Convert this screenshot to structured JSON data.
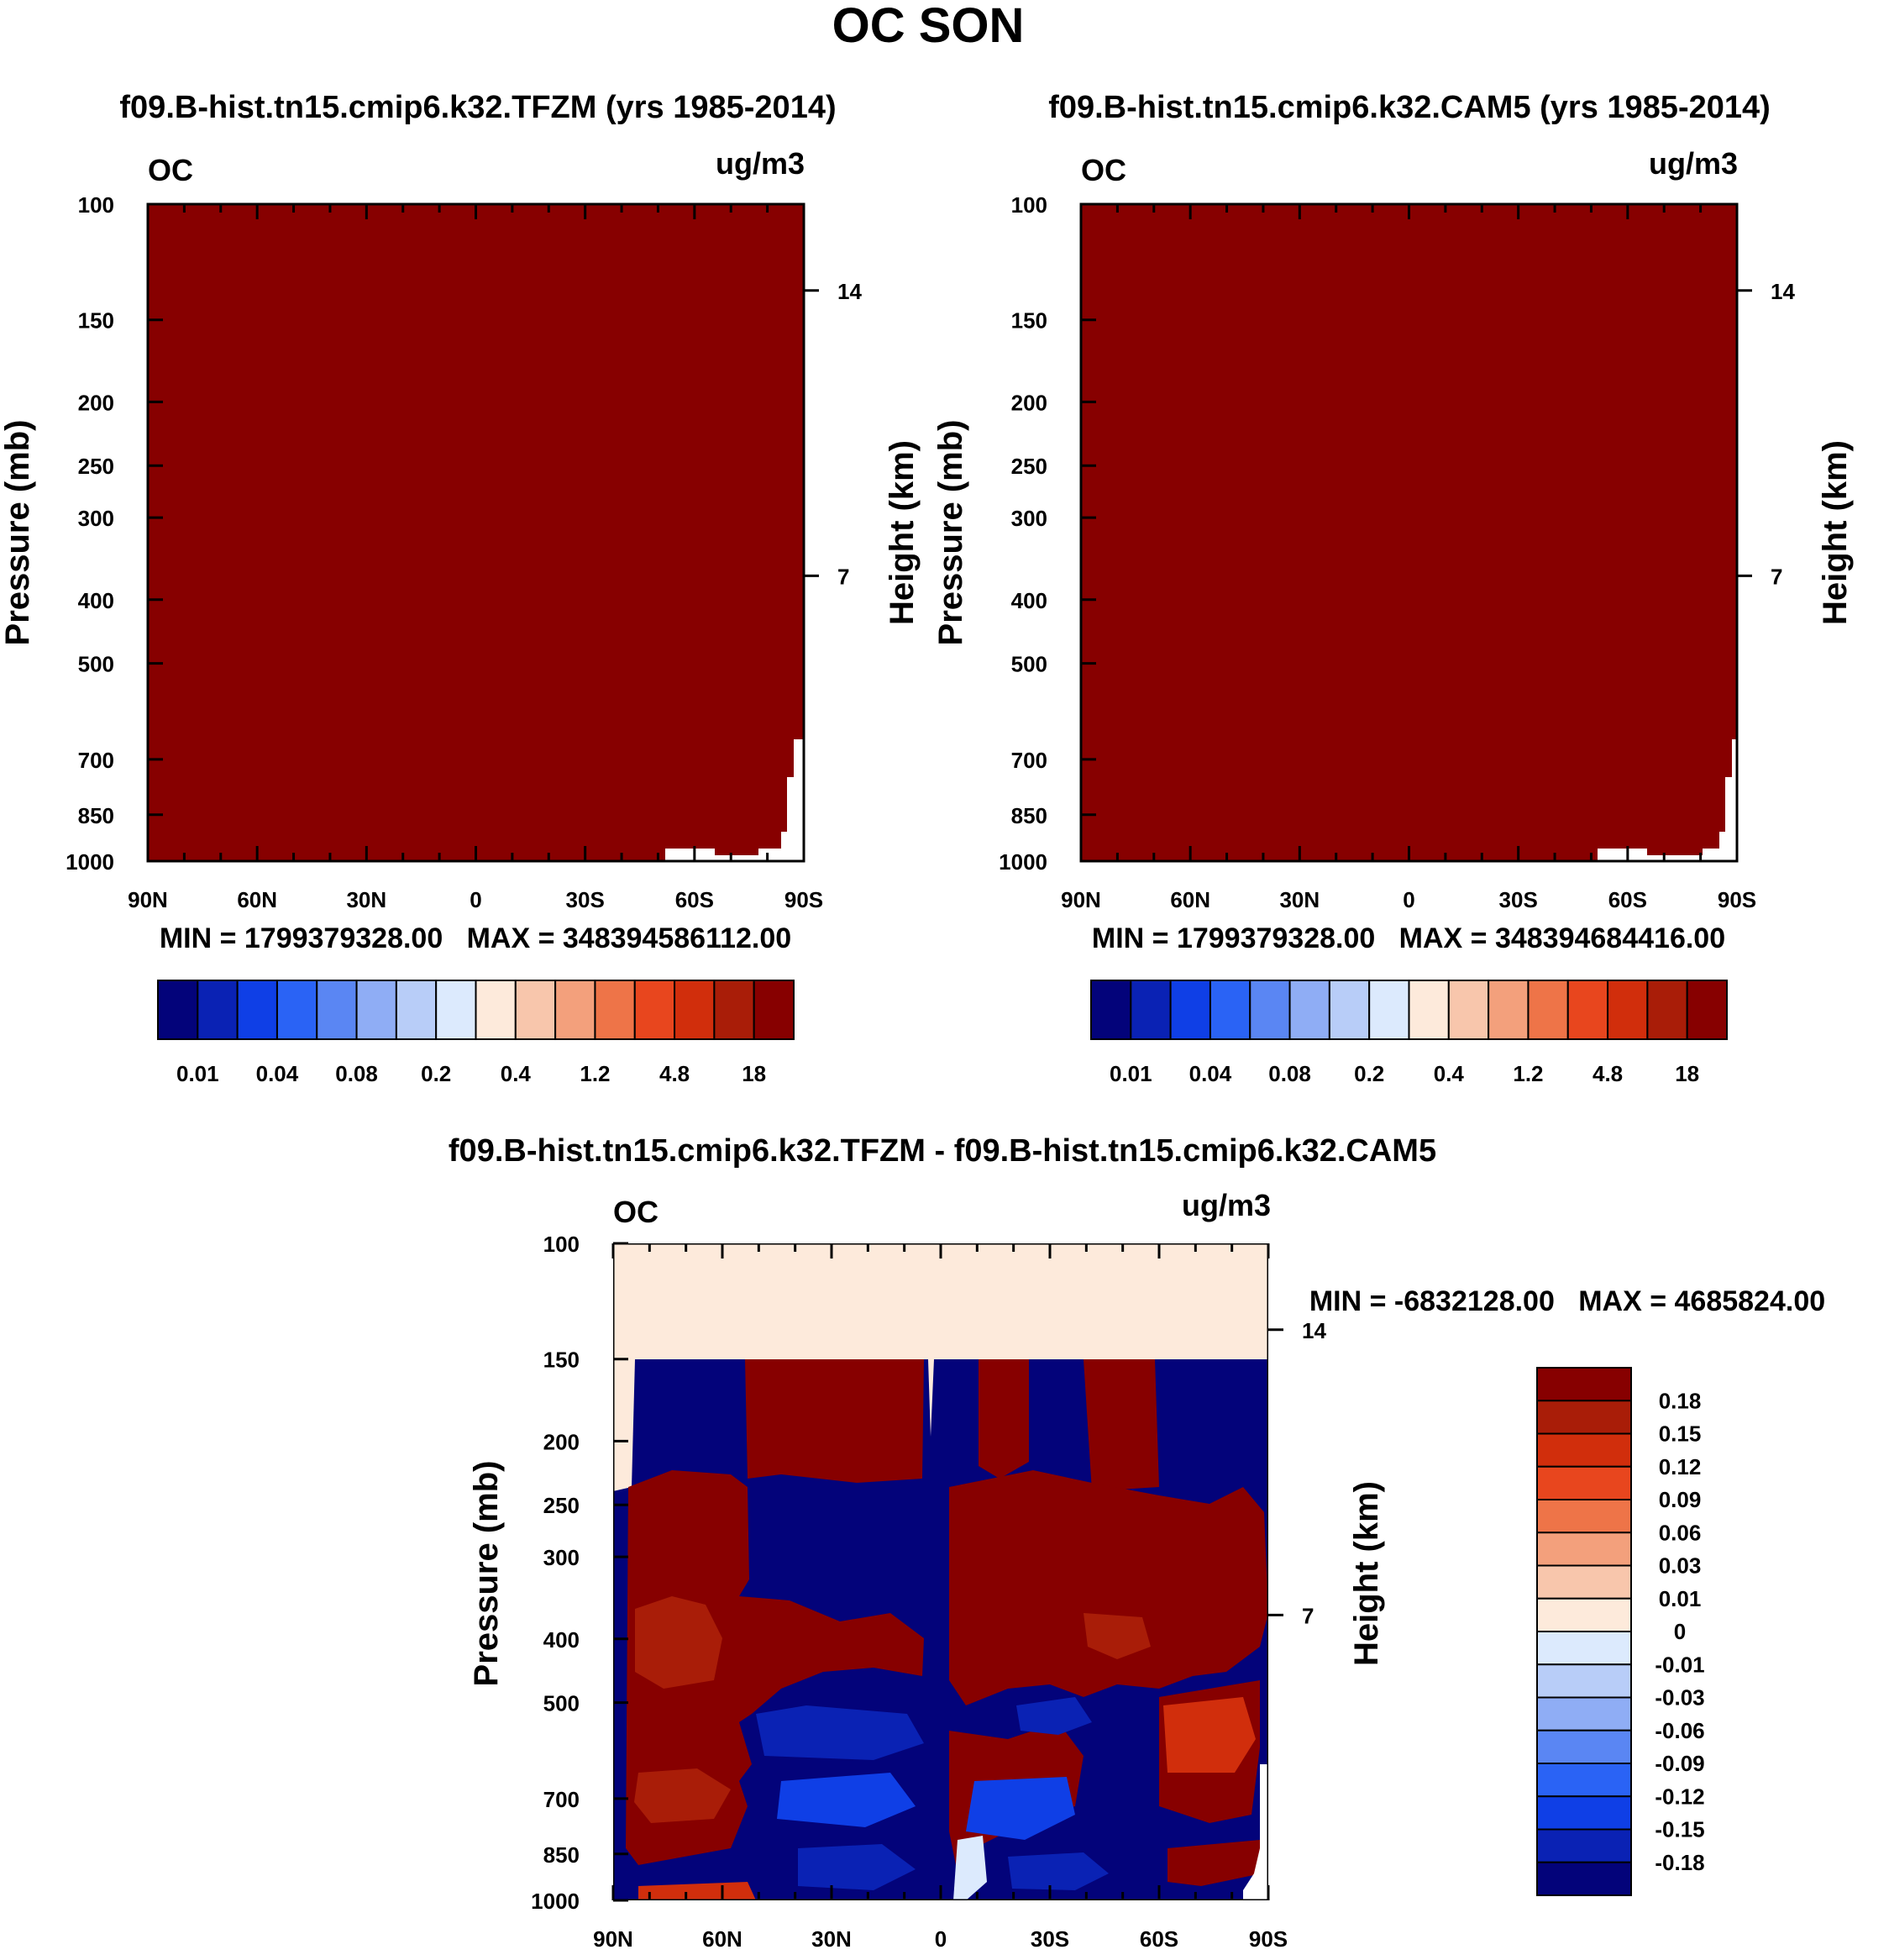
{
  "figure_title": "OC SON",
  "panels": [
    {
      "title": "f09.B-hist.tn15.cmip6.k32.TFZM (yrs 1985-2014)",
      "var_label": "OC",
      "units": "ug/m3",
      "ylabel": "Pressure (mb)",
      "ylabel_right": "Height (km)",
      "stats": "MIN = 1799379328.00   MAX = 348394586112.00"
    },
    {
      "title": "f09.B-hist.tn15.cmip6.k32.CAM5 (yrs 1985-2014)",
      "var_label": "OC",
      "units": "ug/m3",
      "ylabel": "Pressure (mb)",
      "ylabel_right": "Height (km)",
      "stats": "MIN = 1799379328.00   MAX = 348394684416.00"
    },
    {
      "title": "f09.B-hist.tn15.cmip6.k32.TFZM - f09.B-hist.tn15.cmip6.k32.CAM5",
      "var_label": "OC",
      "units": "ug/m3",
      "ylabel": "Pressure (mb)",
      "ylabel_right": "Height (km)",
      "stats": "MIN = -6832128.00   MAX = 4685824.00"
    }
  ],
  "colors": {
    "abs_palette": [
      "#03037a",
      "#0a22b4",
      "#0f3fe6",
      "#2a63f5",
      "#5a86f3",
      "#8fadf5",
      "#b8cdf8",
      "#dceafd",
      "#fdeadb",
      "#f8c6ac",
      "#f3a07c",
      "#ee7448",
      "#e8461e",
      "#d12e0c",
      "#a91d08",
      "#870000"
    ],
    "diff_palette": [
      "#870000",
      "#a91d08",
      "#d12e0c",
      "#e8461e",
      "#ee7448",
      "#f3a07c",
      "#f8c6ac",
      "#fdeadb",
      "#dceafd",
      "#b8cdf8",
      "#8fadf5",
      "#5a86f3",
      "#2a63f5",
      "#0f3fe6",
      "#0a22b4",
      "#03037a"
    ]
  },
  "chart_data": [
    {
      "type": "heatmap",
      "title": "f09.B-hist.tn15.cmip6.k32.TFZM (yrs 1985-2014)",
      "x_ticks": [
        "90N",
        "60N",
        "30N",
        "0",
        "30S",
        "60S",
        "90S"
      ],
      "y_ticks": [
        100,
        150,
        200,
        250,
        300,
        400,
        500,
        700,
        850,
        1000
      ],
      "y_ticks_right": [
        14,
        7
      ],
      "ylog": true,
      "ylim": [
        1000,
        100
      ],
      "colorbar_labels": [
        "0.01",
        "0.04",
        "0.08",
        "0.2",
        "0.4",
        "1.2",
        "4.8",
        "18"
      ],
      "field": "values exceed 18 ug/m3 everywhere except near-surface strip 60S-90S (white/missing)"
    },
    {
      "type": "heatmap",
      "title": "f09.B-hist.tn15.cmip6.k32.CAM5 (yrs 1985-2014)",
      "x_ticks": [
        "90N",
        "60N",
        "30N",
        "0",
        "30S",
        "60S",
        "90S"
      ],
      "y_ticks": [
        100,
        150,
        200,
        250,
        300,
        400,
        500,
        700,
        850,
        1000
      ],
      "y_ticks_right": [
        14,
        7
      ],
      "ylog": true,
      "ylim": [
        1000,
        100
      ],
      "colorbar_labels": [
        "0.01",
        "0.04",
        "0.08",
        "0.2",
        "0.4",
        "1.2",
        "4.8",
        "18"
      ],
      "field": "values exceed 18 ug/m3 everywhere except near-surface strip 60S-90S (white/missing)"
    },
    {
      "type": "heatmap",
      "title": "f09.B-hist.tn15.cmip6.k32.TFZM - f09.B-hist.tn15.cmip6.k32.CAM5",
      "x_ticks": [
        "90N",
        "60N",
        "30N",
        "0",
        "30S",
        "60S",
        "90S"
      ],
      "y_ticks": [
        100,
        150,
        200,
        250,
        300,
        400,
        500,
        700,
        850,
        1000
      ],
      "y_ticks_right": [
        14,
        7
      ],
      "ylog": true,
      "ylim": [
        1000,
        100
      ],
      "colorbar_labels": [
        "0.18",
        "0.15",
        "0.12",
        "0.09",
        "0.06",
        "0.03",
        "0.01",
        "0",
        "-0.01",
        "-0.03",
        "-0.06",
        "-0.09",
        "-0.12",
        "-0.15",
        "-0.18"
      ],
      "field": "100-150 mb ~0.01 (light orange); below 150 mb alternating bands of < -0.18 (dark blue) and > 0.18 (dark red)"
    }
  ]
}
